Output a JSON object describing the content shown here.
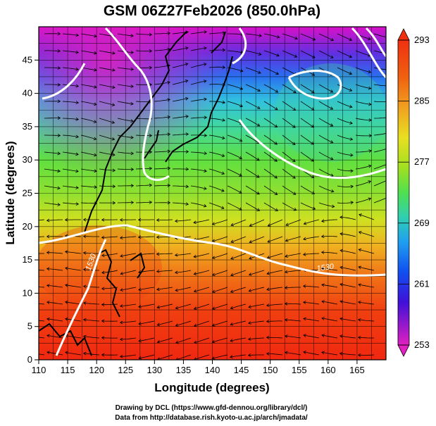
{
  "title": "GSM 06Z27Feb2026 (850.0hPa)",
  "x_axis_label": "Longitude (degrees)",
  "y_axis_label": "Latitude  (degrees)",
  "x_ticks": [
    "110",
    "115",
    "120",
    "125",
    "130",
    "135",
    "140",
    "145",
    "150",
    "155",
    "160",
    "165"
  ],
  "y_ticks": [
    "0",
    "5",
    "10",
    "15",
    "20",
    "25",
    "30",
    "35",
    "40",
    "45"
  ],
  "colorbar": {
    "labels": [
      "293",
      "285",
      "277",
      "269",
      "261",
      "253"
    ],
    "min": 253,
    "max": 293,
    "colors": [
      "#e020c0",
      "#c010d0",
      "#5020e0",
      "#1040f0",
      "#20a0f0",
      "#30d0d0",
      "#40e080",
      "#60e040",
      "#a0e020",
      "#e8e020",
      "#f0a020",
      "#f06010",
      "#f03010"
    ]
  },
  "contour_labels": [
    "1530",
    "1530"
  ],
  "credits": {
    "line1": "Drawing by DCL (https://www.gfd-dennou.org/library/dcl/)",
    "line2": "Data from http://database.rish.kyoto-u.ac.jp/arch/jmadata/"
  },
  "map_extent": {
    "lon": [
      110,
      170
    ],
    "lat": [
      0,
      50
    ]
  }
}
